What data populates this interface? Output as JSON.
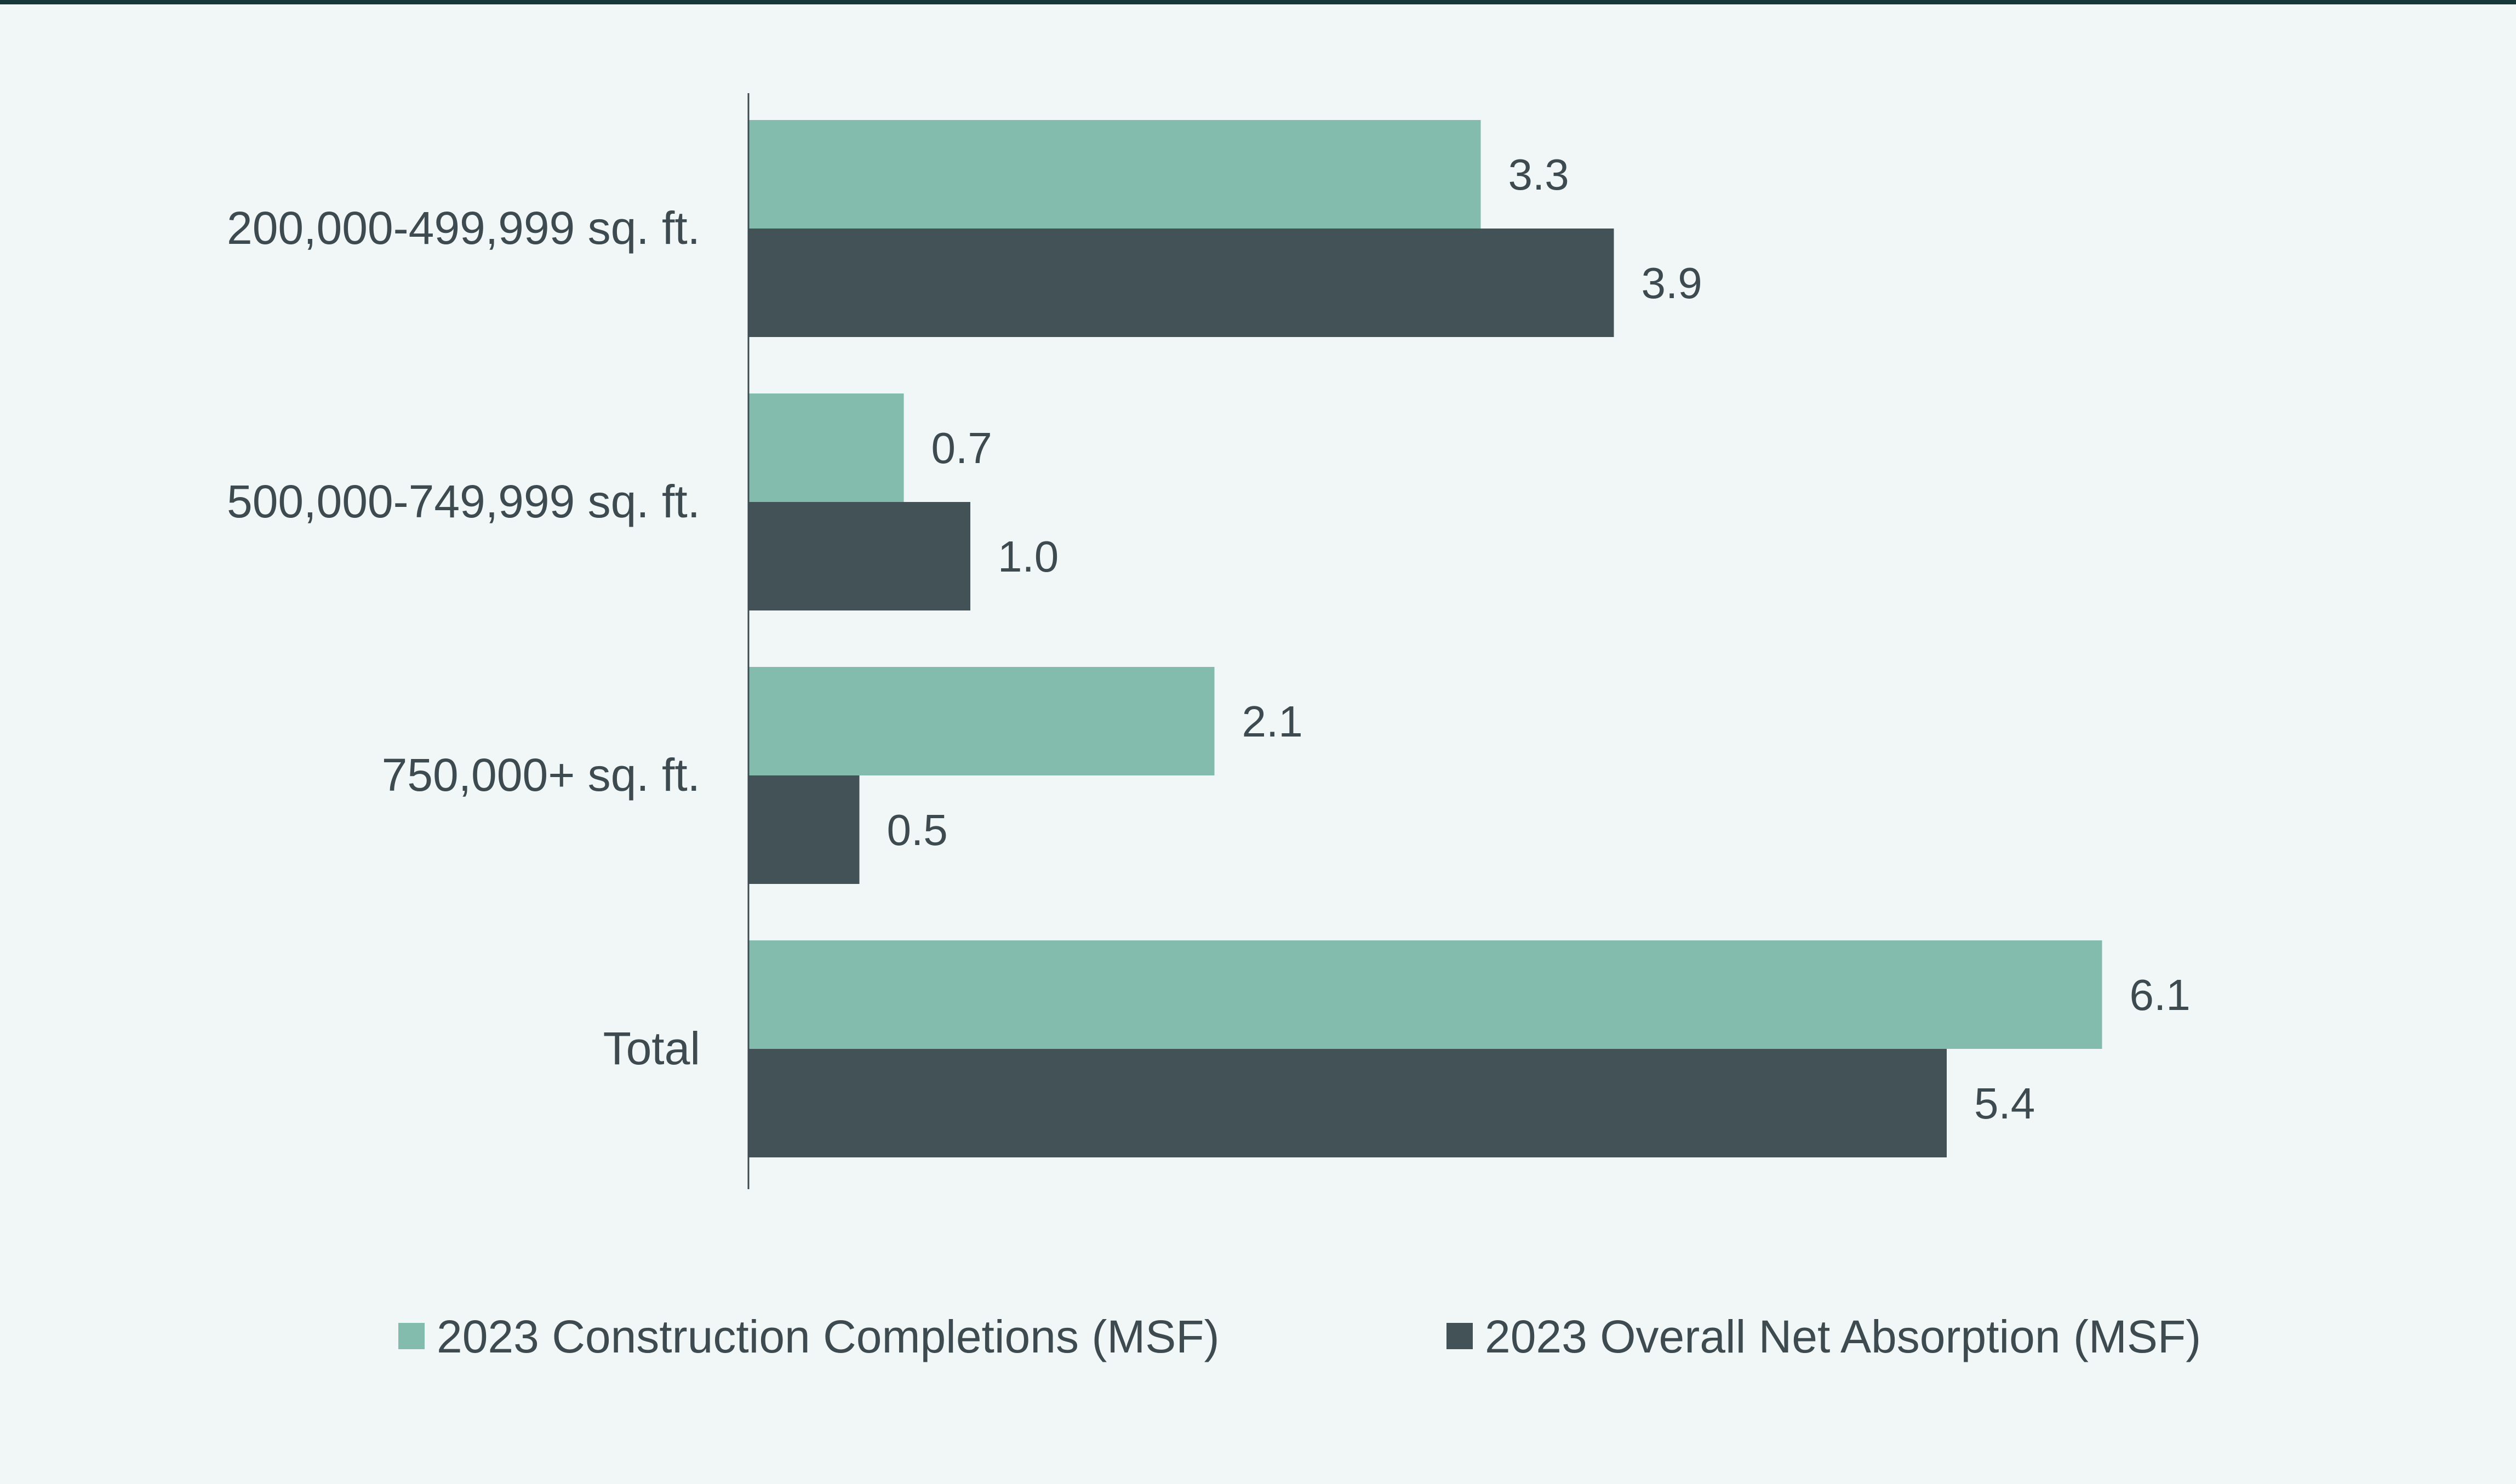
{
  "chart_data": {
    "type": "bar",
    "orientation": "horizontal",
    "title": "",
    "xlabel": "",
    "ylabel": "",
    "categories": [
      "200,000-499,999 sq. ft.",
      "500,000-749,999 sq. ft.",
      "750,000+ sq. ft.",
      "Total"
    ],
    "series": [
      {
        "name": "2023 Construction Completions (MSF)",
        "color": "#83bbad",
        "values": [
          3.3,
          0.7,
          2.1,
          6.1
        ],
        "labels": [
          "3.3",
          "0.7",
          "2.1",
          "6.1"
        ]
      },
      {
        "name": "2023 Overall Net Absorption (MSF)",
        "color": "#435256",
        "values": [
          3.9,
          1.0,
          0.5,
          5.4
        ],
        "labels": [
          "3.9",
          "1.0",
          "0.5",
          "5.4"
        ]
      }
    ],
    "xlim": [
      0,
      7
    ],
    "grid": false,
    "legend_position": "bottom-center",
    "axis_color": "#3d4a4f",
    "text_color": "#3d4a4f"
  }
}
